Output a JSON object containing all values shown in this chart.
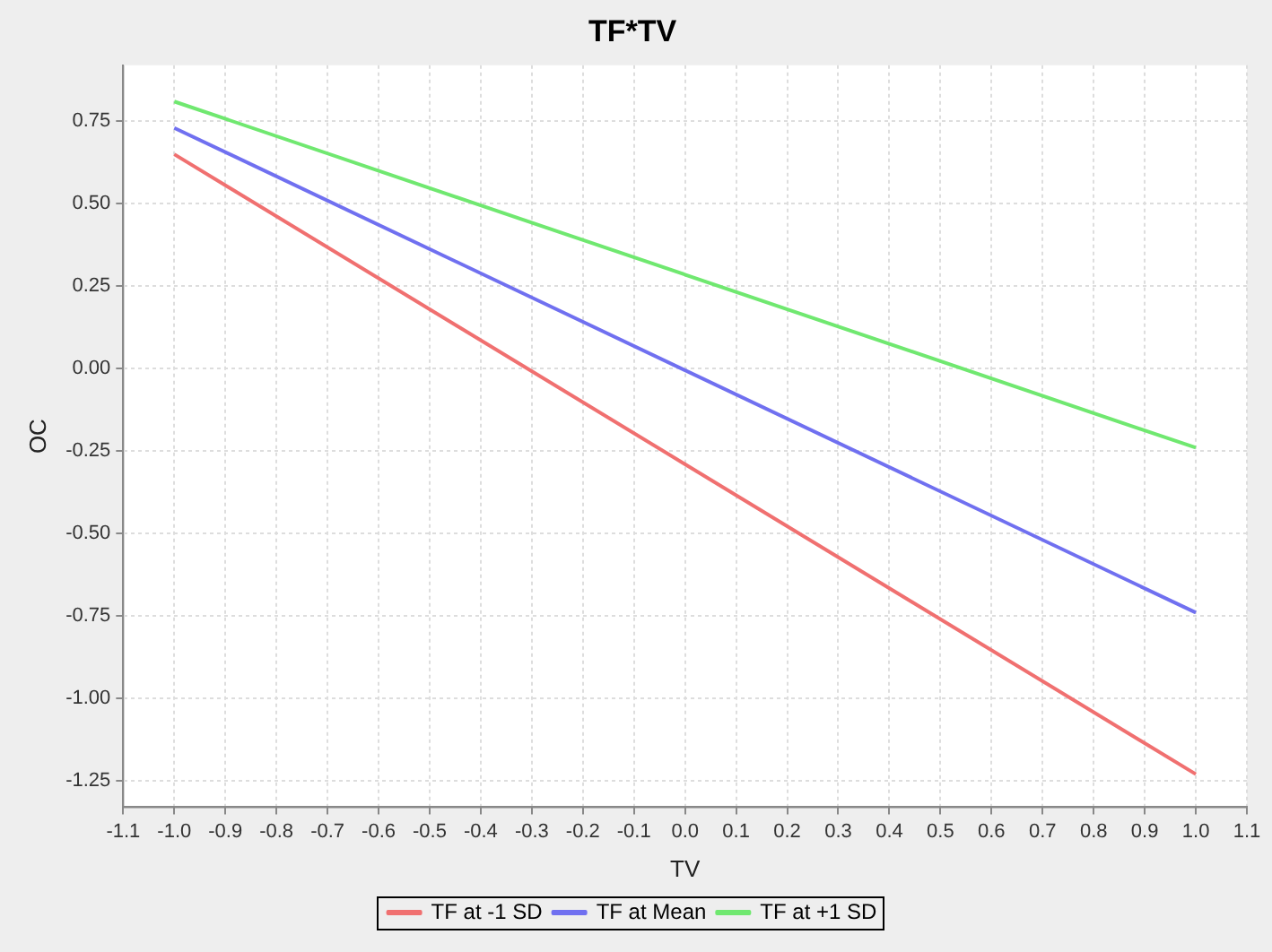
{
  "chart_data": {
    "type": "line",
    "title": "TF*TV",
    "xlabel": "TV",
    "ylabel": "OC",
    "series": [
      {
        "name": "TF at -1 SD",
        "color": "#f07070",
        "values": [
          0.65,
          -1.23
        ]
      },
      {
        "name": "TF at Mean",
        "color": "#7070f0",
        "values": [
          0.73,
          -0.74
        ]
      },
      {
        "name": "TF at +1 SD",
        "color": "#70e870",
        "values": [
          0.81,
          -0.24
        ]
      }
    ],
    "x": [
      -1.0,
      1.0
    ],
    "xlim": [
      -1.1,
      1.1
    ],
    "xticks": [
      -1.1,
      {
        "value": -1,
        "label": "-1.0"
      },
      -0.9,
      -0.8,
      -0.7,
      -0.6,
      -0.5,
      -0.4,
      -0.3,
      -0.2,
      -0.1,
      {
        "value": 0,
        "label": "0.0"
      },
      0.1,
      0.2,
      0.3,
      0.4,
      0.5,
      0.6,
      0.7,
      0.8,
      0.9,
      {
        "value": 1,
        "label": "1.0"
      },
      1.1
    ],
    "ylim": [
      -1.33,
      0.92
    ],
    "yticks": [
      -1.25,
      {
        "value": -1,
        "label": "-1.00"
      },
      -0.75,
      {
        "value": -0.5,
        "label": "-0.50"
      },
      -0.25,
      {
        "value": 0,
        "label": "0.00"
      },
      0.25,
      {
        "value": 0.5,
        "label": "0.50"
      },
      0.75
    ],
    "grid": true,
    "legend": "bottom",
    "marker": "none",
    "line_style": "solid"
  }
}
